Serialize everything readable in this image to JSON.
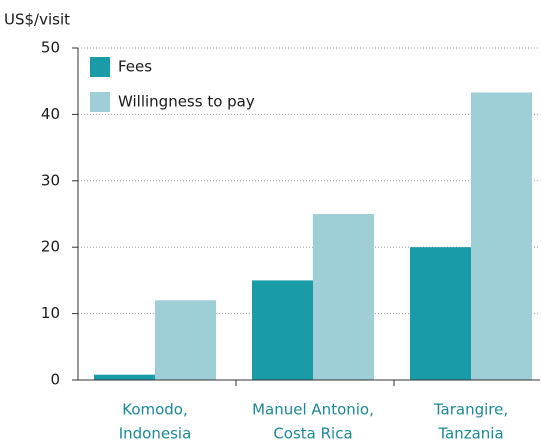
{
  "chart_data": {
    "type": "bar",
    "y_label": "US$/visit",
    "categories": [
      [
        "Komodo,",
        "Indonesia"
      ],
      [
        "Manuel Antonio,",
        "Costa Rica"
      ],
      [
        "Tarangire,",
        "Tanzania"
      ]
    ],
    "series": [
      {
        "name": "Fees",
        "color": "#1a9ba8",
        "values": [
          0.8,
          15,
          20
        ]
      },
      {
        "name": "Willingness to pay",
        "color": "#9fcfd6",
        "values": [
          12,
          25,
          43.3
        ]
      }
    ],
    "ylim": [
      0,
      50
    ],
    "yticks": [
      0,
      10,
      20,
      30,
      40,
      50
    ],
    "grid": true,
    "legend": "upper left"
  }
}
